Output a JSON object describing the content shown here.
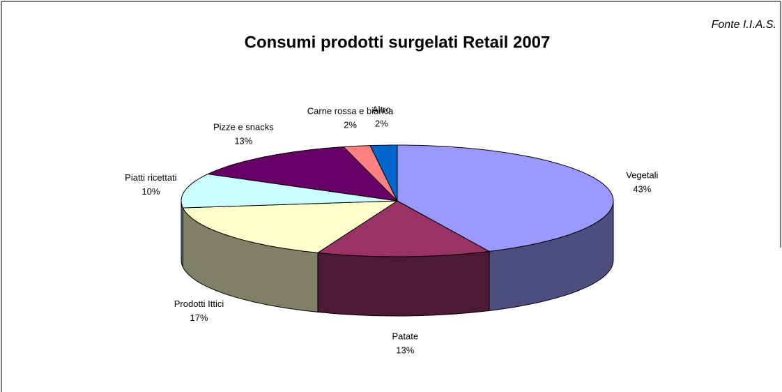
{
  "chart_data": {
    "type": "pie",
    "title": "Consumi prodotti surgelati Retail 2007",
    "source": "Fonte I.I.A.S.",
    "categories": [
      "Vegetali",
      "Patate",
      "Prodotti Ittici",
      "Piatti ricettati",
      "Pizze e snacks",
      "Carne rossa e bianca",
      "Altro"
    ],
    "values": [
      43,
      13,
      17,
      10,
      13,
      2,
      2
    ],
    "value_labels": [
      "43%",
      "13%",
      "17%",
      "10%",
      "13%",
      "2%",
      "2%"
    ],
    "colors": [
      "#9999ff",
      "#993366",
      "#ffffcc",
      "#ccffff",
      "#660066",
      "#ff8080",
      "#0066cc"
    ]
  }
}
